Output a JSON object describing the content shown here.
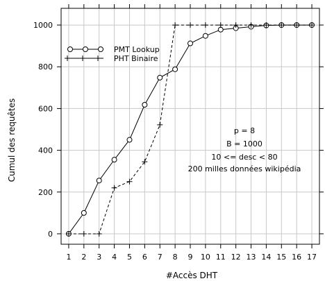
{
  "chart_data": {
    "type": "line",
    "xlabel": "#Accès DHT",
    "ylabel": "Cumul des requêtes",
    "xlim": [
      0.5,
      17.5
    ],
    "ylim": [
      -50,
      1080
    ],
    "x_ticks": [
      1,
      2,
      3,
      4,
      5,
      6,
      7,
      8,
      9,
      10,
      11,
      12,
      13,
      14,
      15,
      16,
      17
    ],
    "y_ticks": [
      0,
      200,
      400,
      600,
      800,
      1000
    ],
    "grid": true,
    "legend_position": "top-left",
    "series": [
      {
        "name": "PMT Lookup",
        "line_style": "solid",
        "marker": "circle",
        "x": [
          1,
          2,
          3,
          4,
          5,
          6,
          7,
          8,
          9,
          10,
          11,
          12,
          13,
          14,
          15,
          16,
          17
        ],
        "y": [
          0,
          100,
          255,
          355,
          450,
          618,
          748,
          788,
          912,
          948,
          978,
          985,
          992,
          998,
          1000,
          1000,
          1000
        ]
      },
      {
        "name": "PHT Binaire",
        "line_style": "dashed",
        "marker": "plus",
        "x": [
          1,
          2,
          3,
          4,
          5,
          6,
          7,
          8,
          9,
          10,
          11,
          12,
          13,
          14,
          15,
          16,
          17
        ],
        "y": [
          0,
          0,
          0,
          220,
          250,
          345,
          522,
          1000,
          1000,
          1000,
          1000,
          1000,
          1000,
          1000,
          1000,
          1000,
          1000
        ]
      }
    ],
    "annotations": [
      "p = 8",
      "B = 1000",
      "10 <= desc < 80",
      "200 milles données wikipédia"
    ]
  }
}
